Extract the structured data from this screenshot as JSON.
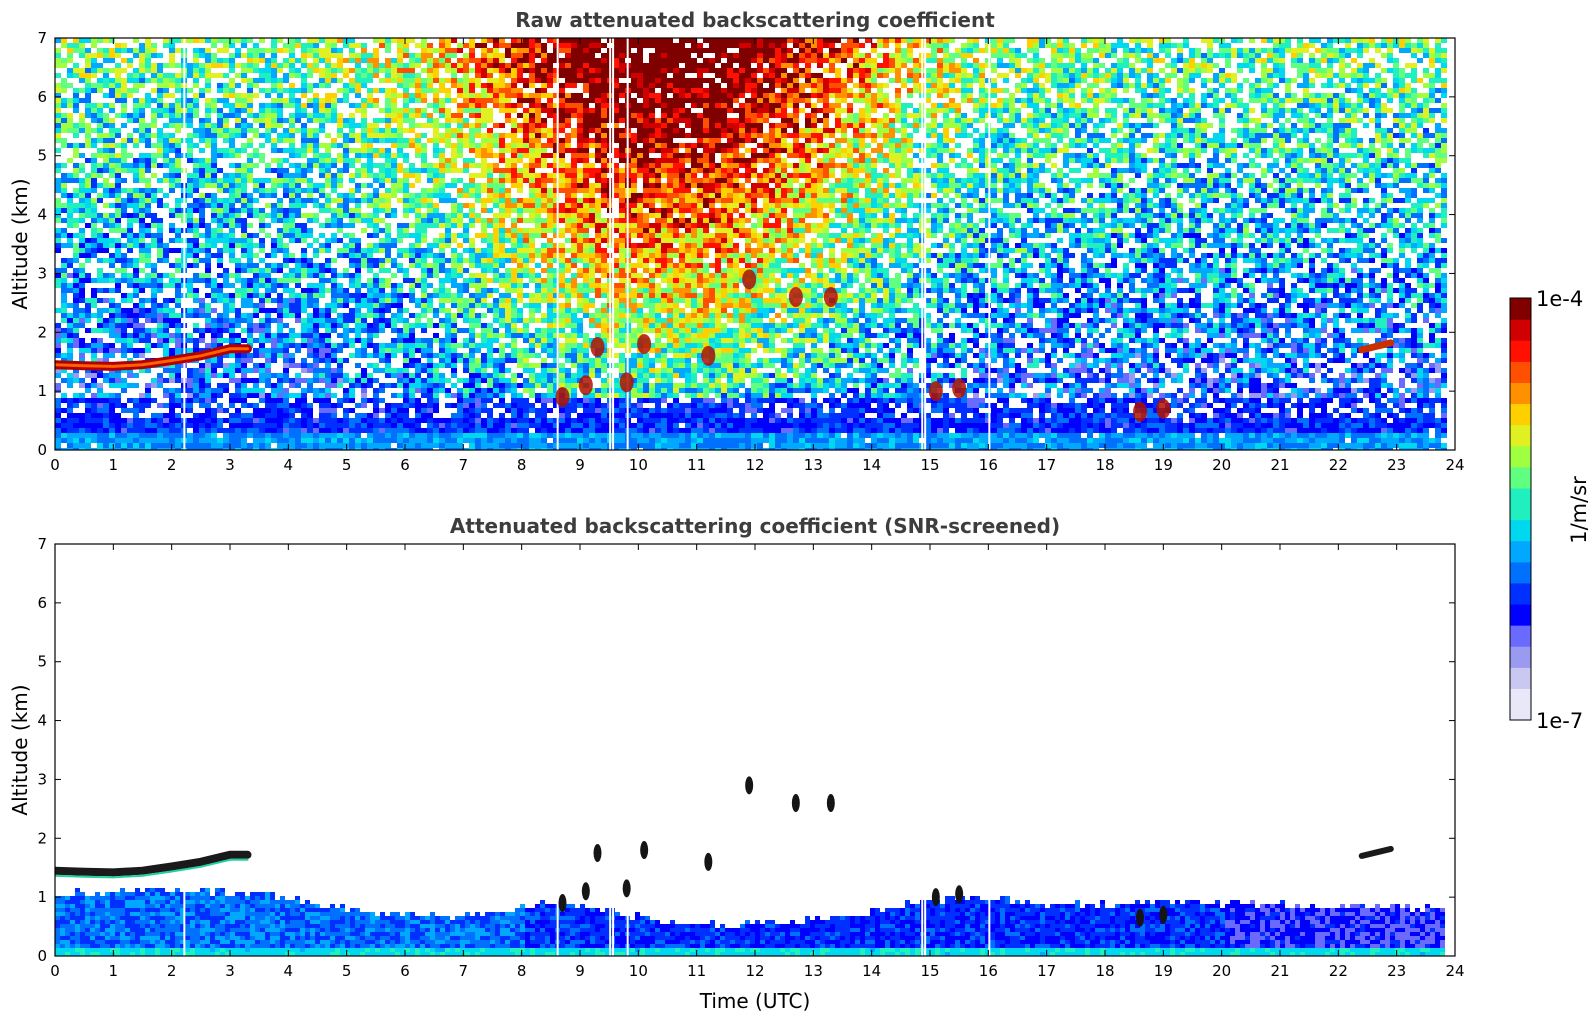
{
  "chart_data": [
    {
      "type": "heatmap",
      "title": "Raw attenuated backscattering coefficient",
      "xlabel": "",
      "ylabel": "Altitude (km)",
      "xlim": [
        0,
        24
      ],
      "ylim": [
        0,
        7
      ],
      "xticks": [
        "0",
        "1",
        "2",
        "3",
        "4",
        "5",
        "6",
        "7",
        "8",
        "9",
        "10",
        "11",
        "12",
        "13",
        "14",
        "15",
        "16",
        "17",
        "18",
        "19",
        "20",
        "21",
        "22",
        "23",
        "24"
      ],
      "yticks": [
        "0",
        "1",
        "2",
        "3",
        "4",
        "5",
        "6",
        "7"
      ],
      "features": {
        "cloud_layer_1": [
          [
            0,
            1.45
          ],
          [
            0.5,
            1.43
          ],
          [
            1,
            1.42
          ],
          [
            1.5,
            1.45
          ],
          [
            2,
            1.52
          ],
          [
            2.5,
            1.6
          ],
          [
            3,
            1.72
          ],
          [
            3.3,
            1.72
          ]
        ],
        "cloud_layer_2": [
          [
            22.4,
            1.7
          ],
          [
            22.9,
            1.82
          ]
        ],
        "mid_clouds": [
          [
            9.3,
            1.75
          ],
          [
            10.1,
            1.8
          ],
          [
            11.2,
            1.6
          ],
          [
            11.9,
            2.9
          ],
          [
            12.7,
            2.6
          ],
          [
            13.3,
            2.6
          ]
        ],
        "low_clouds": [
          [
            8.7,
            0.9
          ],
          [
            9.1,
            1.1
          ],
          [
            9.8,
            1.15
          ],
          [
            15.1,
            1.0
          ],
          [
            15.5,
            1.05
          ],
          [
            18.6,
            0.65
          ],
          [
            19.0,
            0.7
          ]
        ]
      }
    },
    {
      "type": "heatmap",
      "title": "Attenuated backscattering coefficient (SNR-screened)",
      "xlabel": "Time (UTC)",
      "ylabel": "Altitude (km)",
      "xlim": [
        0,
        24
      ],
      "ylim": [
        0,
        7
      ],
      "xticks": [
        "0",
        "1",
        "2",
        "3",
        "4",
        "5",
        "6",
        "7",
        "8",
        "9",
        "10",
        "11",
        "12",
        "13",
        "14",
        "15",
        "16",
        "17",
        "18",
        "19",
        "20",
        "21",
        "22",
        "23",
        "24"
      ],
      "yticks": [
        "0",
        "1",
        "2",
        "3",
        "4",
        "5",
        "6",
        "7"
      ],
      "signal_top_km": [
        [
          0,
          1.1
        ],
        [
          2,
          1.15
        ],
        [
          3.5,
          1.1
        ],
        [
          4.5,
          0.9
        ],
        [
          5.5,
          0.75
        ],
        [
          6.5,
          0.7
        ],
        [
          7.5,
          0.75
        ],
        [
          8.5,
          0.95
        ],
        [
          9.5,
          0.8
        ],
        [
          10.5,
          0.6
        ],
        [
          11.5,
          0.55
        ],
        [
          12.5,
          0.6
        ],
        [
          13.5,
          0.7
        ],
        [
          14.5,
          0.9
        ],
        [
          15.5,
          1.05
        ],
        [
          16.5,
          0.95
        ],
        [
          17.5,
          0.9
        ],
        [
          18.5,
          0.95
        ],
        [
          19.5,
          0.95
        ],
        [
          21,
          0.9
        ],
        [
          23.8,
          0.85
        ]
      ]
    }
  ],
  "colorbar": {
    "max_label": "1e-4",
    "min_label": "1e-7",
    "unit_label": "1/m/sr",
    "colors": [
      "#e8e8f8",
      "#c8c8f0",
      "#9a9af0",
      "#6a6aff",
      "#0000ff",
      "#0030ff",
      "#0070ff",
      "#00a8ff",
      "#00d8f0",
      "#20f0c0",
      "#60ff80",
      "#a0ff40",
      "#e0f020",
      "#ffd000",
      "#ff9000",
      "#ff5000",
      "#ff1000",
      "#d00000",
      "#800000"
    ]
  }
}
